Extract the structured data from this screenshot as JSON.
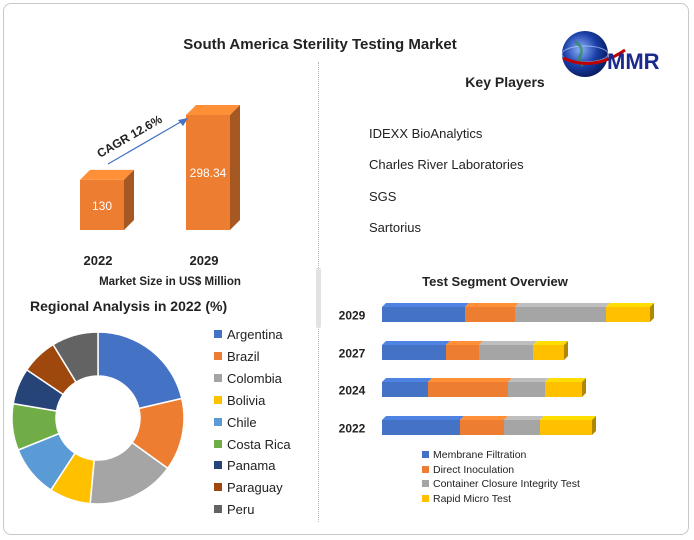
{
  "header": {
    "title": "South America Sterility Testing Market",
    "logo_text": "MMR",
    "logo_icon": "globe-icon"
  },
  "key_players": {
    "title": "Key Players",
    "items": [
      "IDEXX BioAnalytics",
      "Charles River Laboratories",
      "SGS",
      "Sartorius"
    ]
  },
  "colors": {
    "blue": "#4472c4",
    "orange": "#ed7d31",
    "gray": "#a5a5a5",
    "gold": "#ffc000",
    "lightblue": "#5b9bd5",
    "green": "#70ad47",
    "navy": "#264478",
    "brown": "#9e480e",
    "darkgray": "#636363"
  },
  "chart_data": [
    {
      "type": "bar",
      "categories": [
        "2022",
        "2029"
      ],
      "values": [
        130,
        298.34
      ],
      "value_labels": [
        "130",
        "298.34"
      ],
      "annotation": "CAGR 12.6%",
      "xlabel": "Market Size in US$ Million"
    },
    {
      "type": "pie",
      "title": "Regional Analysis in 2022 (%)",
      "labels": [
        "Argentina",
        "Brazil",
        "Colombia",
        "Bolivia",
        "Chile",
        "Costa Rica",
        "Panama",
        "Paraguay",
        "Peru"
      ],
      "values": [
        22,
        14,
        17,
        8,
        10,
        9,
        7,
        7,
        9
      ],
      "colors": [
        "#4472c4",
        "#ed7d31",
        "#a5a5a5",
        "#ffc000",
        "#5b9bd5",
        "#70ad47",
        "#264478",
        "#9e480e",
        "#636363"
      ],
      "legend": "right"
    },
    {
      "type": "bar",
      "orientation": "horizontal",
      "stacked": true,
      "title": "Test Segment Overview",
      "categories": [
        "2029",
        "2027",
        "2024",
        "2022"
      ],
      "series": [
        {
          "name": "Membrane Filtration",
          "values": [
            83,
            64,
            46,
            78
          ]
        },
        {
          "name": "Direct Inoculation",
          "values": [
            50,
            33,
            80,
            44
          ]
        },
        {
          "name": "Container Closure Integrity Test",
          "values": [
            91,
            54,
            37,
            36
          ]
        },
        {
          "name": "Rapid Micro Test",
          "values": [
            44,
            31,
            37,
            52
          ]
        }
      ],
      "legend": "bottom"
    }
  ]
}
